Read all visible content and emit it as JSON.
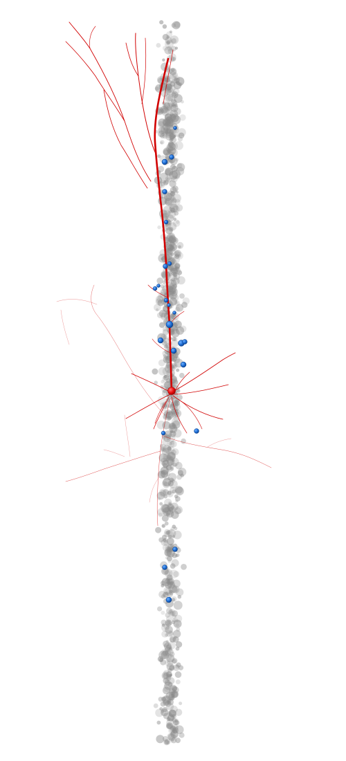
{
  "scene": {
    "background": "#ffffff",
    "colors": {
      "neuron": "#d10000",
      "soma": "#ee1111",
      "connected_cell": "#1f6fd6",
      "connected_cell_dark": "#0b3f8a",
      "population_cell": "#8a8a8a"
    }
  }
}
